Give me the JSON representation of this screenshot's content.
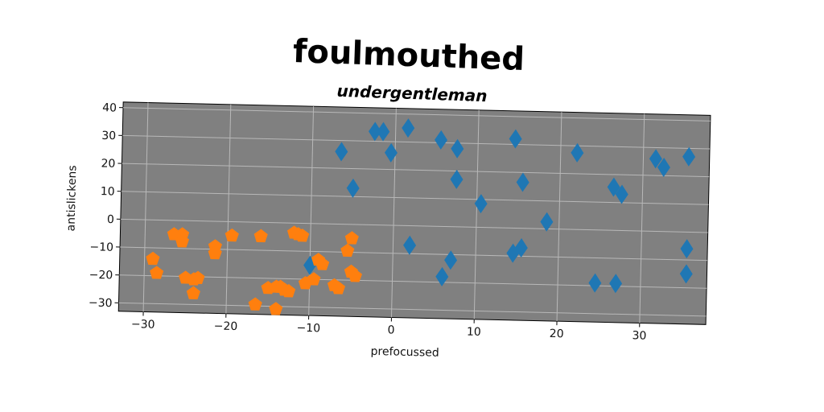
{
  "chart_data": {
    "type": "scatter",
    "title": "foulmouthed",
    "subtitle": "undergentleman",
    "xlabel": "prefocussed",
    "ylabel": "antislickens",
    "xlim": [
      -33,
      38
    ],
    "ylim": [
      -33,
      42
    ],
    "xticks": [
      -30,
      -20,
      -10,
      0,
      10,
      20,
      30
    ],
    "yticks": [
      -30,
      -20,
      -10,
      0,
      10,
      20,
      30,
      40
    ],
    "xtick_labels": [
      "−30",
      "−20",
      "−10",
      "0",
      "10",
      "20",
      "30"
    ],
    "ytick_labels": [
      "−30",
      "−20",
      "−10",
      "0",
      "10",
      "20",
      "30",
      "40"
    ],
    "grid": true,
    "background": "#808080",
    "series": [
      {
        "marker": "diamond",
        "color": "#1f77b4",
        "points": [
          [
            -6.5,
            26
          ],
          [
            -5,
            13
          ],
          [
            -2.5,
            33.5
          ],
          [
            -1.5,
            33.5
          ],
          [
            -0.5,
            26
          ],
          [
            1.5,
            35
          ],
          [
            2,
            -7
          ],
          [
            5.5,
            31
          ],
          [
            6,
            -18
          ],
          [
            7,
            -12
          ],
          [
            7.5,
            17
          ],
          [
            7.5,
            28
          ],
          [
            10.5,
            8.5
          ],
          [
            14.5,
            -9
          ],
          [
            14.5,
            32
          ],
          [
            15.5,
            -7
          ],
          [
            15.5,
            16.5
          ],
          [
            18.5,
            2.5
          ],
          [
            22,
            27.5
          ],
          [
            24.5,
            -19
          ],
          [
            26.5,
            15.5
          ],
          [
            27,
            -19
          ],
          [
            27.5,
            13
          ],
          [
            31.5,
            26
          ],
          [
            32.5,
            23
          ],
          [
            35.5,
            27
          ],
          [
            35.5,
            -6
          ],
          [
            35.5,
            -15
          ],
          [
            -10,
            -15
          ]
        ]
      },
      {
        "marker": "pentagon",
        "color": "#ff7f0e",
        "points": [
          [
            -29,
            -14
          ],
          [
            -28.5,
            -19
          ],
          [
            -26.5,
            -5
          ],
          [
            -25.5,
            -5
          ],
          [
            -25.5,
            -7.5
          ],
          [
            -25,
            -20.5
          ],
          [
            -24,
            -21
          ],
          [
            -24,
            -26
          ],
          [
            -23.5,
            -20.5
          ],
          [
            -21.5,
            -9
          ],
          [
            -21.5,
            -11.5
          ],
          [
            -19.5,
            -5
          ],
          [
            -16,
            -5
          ],
          [
            -16.5,
            -29.5
          ],
          [
            -15,
            -23.5
          ],
          [
            -14,
            -23
          ],
          [
            -14,
            -31
          ],
          [
            -13.5,
            -23
          ],
          [
            -13,
            -24
          ],
          [
            -12.5,
            -24.5
          ],
          [
            -12,
            -3.5
          ],
          [
            -11.5,
            -4
          ],
          [
            -11,
            -4.5
          ],
          [
            -10.5,
            -21.5
          ],
          [
            -9.5,
            -20
          ],
          [
            -9,
            -13
          ],
          [
            -8.5,
            -14.5
          ],
          [
            -7,
            -22
          ],
          [
            -6.5,
            -23
          ],
          [
            -5.5,
            -9.5
          ],
          [
            -5,
            -5
          ],
          [
            -5,
            -17
          ],
          [
            -4.5,
            -18.5
          ]
        ]
      }
    ]
  }
}
